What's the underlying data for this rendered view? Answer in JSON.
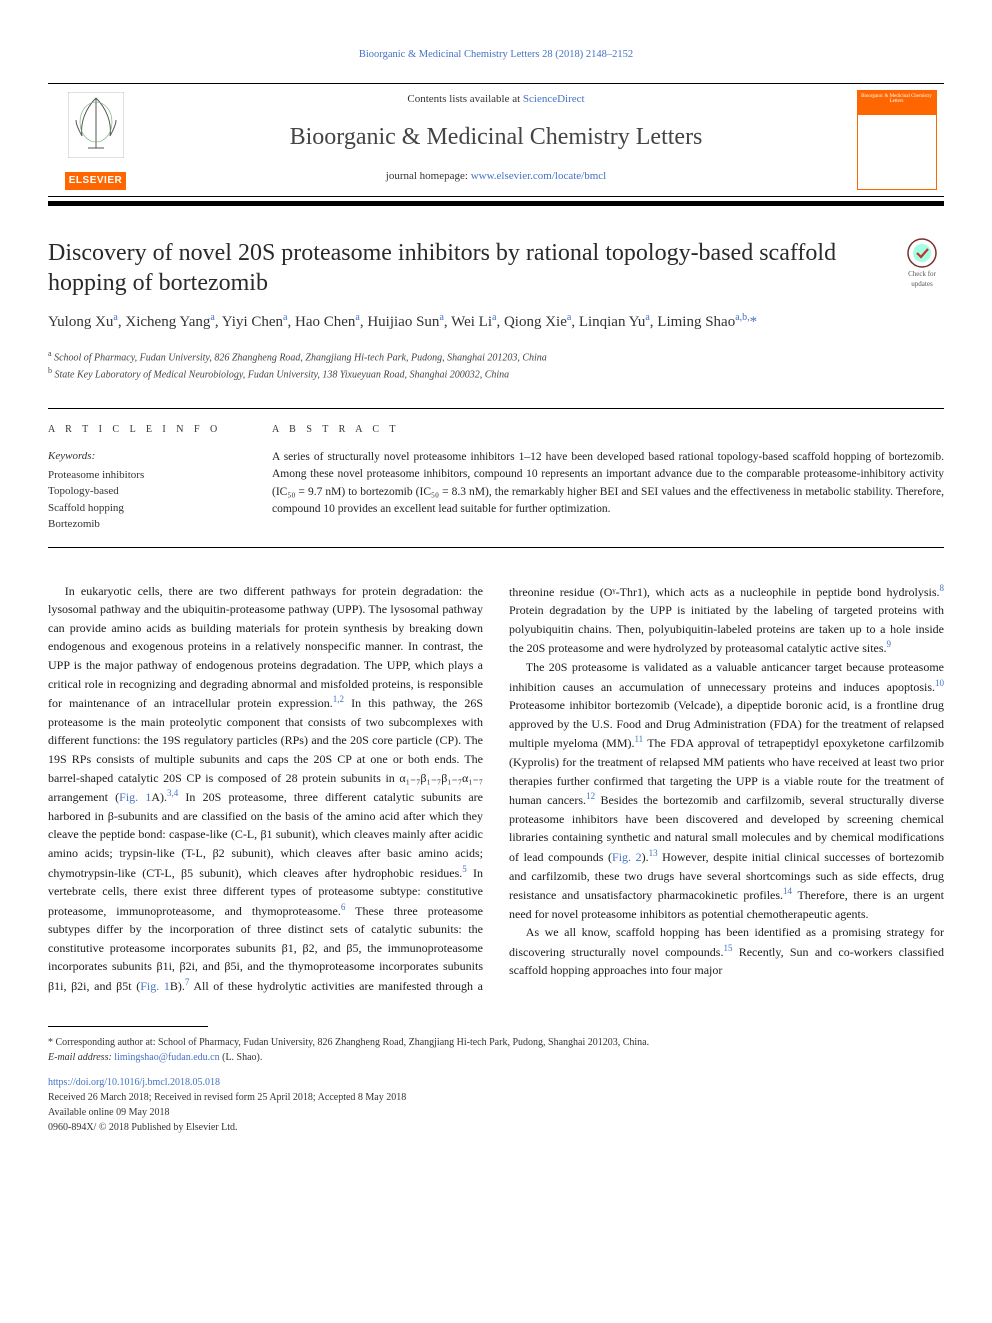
{
  "running_header": {
    "text_prefix": "Bioorganic & Medicinal Chemistry Letters 28 (2018) 2148–2152",
    "link_label": ""
  },
  "masthead": {
    "contents_prefix": "Contents lists available at ",
    "contents_link": "ScienceDirect",
    "journal_title": "Bioorganic & Medicinal Chemistry Letters",
    "homepage_prefix": "journal homepage: ",
    "homepage_link": "www.elsevier.com/locate/bmcl",
    "elsevier_wordmark": "ELSEVIER",
    "cover_title": "Bioorganic & Medicinal Chemistry Letters"
  },
  "check_updates_label": "Check for updates",
  "article_title": "Discovery of novel 20S proteasome inhibitors by rational topology-based scaffold hopping of bortezomib",
  "authors_html": "Yulong Xu<sup>a</sup>, Xicheng Yang<sup>a</sup>, Yiyi Chen<sup>a</sup>, Hao Chen<sup>a</sup>, Huijiao Sun<sup>a</sup>, Wei Li<sup>a</sup>, Qiong Xie<sup>a</sup>, Linqian Yu<sup>a</sup>, Liming Shao<sup>a,b,</sup><span class=\"corr\">*</span>",
  "affiliations": [
    "a School of Pharmacy, Fudan University, 826 Zhangheng Road, Zhangjiang Hi-tech Park, Pudong, Shanghai 201203, China",
    "b State Key Laboratory of Medical Neurobiology, Fudan University, 138 Yixueyuan Road, Shanghai 200032, China"
  ],
  "section_heads": {
    "article_info": "A R T I C L E  I N F O",
    "abstract": "A B S T R A C T"
  },
  "keywords_head": "Keywords:",
  "keywords": [
    "Proteasome inhibitors",
    "Topology-based",
    "Scaffold hopping",
    "Bortezomib"
  ],
  "abstract": "A series of structurally novel proteasome inhibitors 1–12 have been developed based rational topology-based scaffold hopping of bortezomib. Among these novel proteasome inhibitors, compound 10 represents an important advance due to the comparable proteasome-inhibitory activity (IC₅₀ = 9.7 nM) to bortezomib (IC₅₀ = 8.3 nM), the remarkably higher BEI and SEI values and the effectiveness in metabolic stability. Therefore, compound 10 provides an excellent lead suitable for further optimization.",
  "body": {
    "p1": "In eukaryotic cells, there are two different pathways for protein degradation: the lysosomal pathway and the ubiquitin-proteasome pathway (UPP). The lysosomal pathway can provide amino acids as building materials for protein synthesis by breaking down endogenous and exogenous proteins in a relatively nonspecific manner. In contrast, the UPP is the major pathway of endogenous proteins degradation. The UPP, which plays a critical role in recognizing and degrading abnormal and misfolded proteins, is responsible for maintenance of an intracellular protein expression.",
    "r1": "1,2",
    "p1b": " In this pathway, the 26S proteasome is the main proteolytic component that consists of two subcomplexes with different functions: the 19S regulatory particles (RPs) and the 20S core particle (CP). The 19S RPs consists of multiple subunits and caps the 20S CP at one or both ends. The barrel-shaped catalytic 20S CP is composed of 28 protein subunits in α₁₋₇β₁₋₇β₁₋₇α₁₋₇ arrangement (",
    "fig1a": "Fig. 1",
    "p1c": "A).",
    "r2": "3,4",
    "p1d": " In 20S proteasome, three different catalytic subunits are harbored in β-subunits and are classified on the basis of the amino acid after which they cleave the peptide bond: caspase-like (C-L, β1 subunit), which cleaves mainly after acidic amino acids; trypsin-like (T-L, β2 subunit), which cleaves after basic amino acids; chymotrypsin-like (CT-L, β5 subunit), which cleaves after hydrophobic residues.",
    "r3": "5",
    "p1e": " In vertebrate cells, there exist three different types of proteasome subtype: constitutive proteasome, immunoproteasome, and thymoproteasome.",
    "r4": "6",
    "p1f": " These three proteasome subtypes differ by the incorporation of three distinct sets of catalytic subunits: the constitutive proteasome incorporates subunits β1, β2, and β5, the immunoproteasome incorporates subunits β1i, β2i, and β5i, and the thymoproteasome incorporates subunits β1i, β2i, and β5t (",
    "fig1b": "Fig. 1",
    "p1g": "B).",
    "r5": "7",
    "p1h": " All of these hydrolytic",
    "p2a": "activities are manifested through a threonine residue (Oᵞ-Thr1), which acts as a nucleophile in peptide bond hydrolysis.",
    "r6": "8",
    "p2b": " Protein degradation by the UPP is initiated by the labeling of targeted proteins with polyubiquitin chains. Then, polyubiquitin-labeled proteins are taken up to a hole inside the 20S proteasome and were hydrolyzed by proteasomal catalytic active sites.",
    "r7": "9",
    "p3a": "The 20S proteasome is validated as a valuable anticancer target because proteasome inhibition causes an accumulation of unnecessary proteins and induces apoptosis.",
    "r8": "10",
    "p3b": " Proteasome inhibitor bortezomib (Velcade), a dipeptide boronic acid, is a frontline drug approved by the U.S. Food and Drug Administration (FDA) for the treatment of relapsed multiple myeloma (MM).",
    "r9": "11",
    "p3c": " The FDA approval of tetrapeptidyl epoxyketone carfilzomib (Kyprolis) for the treatment of relapsed MM patients who have received at least two prior therapies further confirmed that targeting the UPP is a viable route for the treatment of human cancers.",
    "r10": "12",
    "p3d": " Besides the bortezomib and carfilzomib, several structurally diverse proteasome inhibitors have been discovered and developed by screening chemical libraries containing synthetic and natural small molecules and by chemical modifications of lead compounds (",
    "fig2": "Fig. 2",
    "p3e": ").",
    "r11": "13",
    "p3f": " However, despite initial clinical successes of bortezomib and carfilzomib, these two drugs have several shortcomings such as side effects, drug resistance and unsatisfactory pharmacokinetic profiles.",
    "r12": "14",
    "p3g": " Therefore, there is an urgent need for novel proteasome inhibitors as potential chemotherapeutic agents.",
    "p4a": "As we all know, scaffold hopping has been identified as a promising strategy for discovering structurally novel compounds.",
    "r13": "15",
    "p4b": " Recently, Sun and co-workers classified scaffold hopping approaches into four major"
  },
  "footer": {
    "corr_note": "* Corresponding author at: School of Pharmacy, Fudan University, 826 Zhangheng Road, Zhangjiang Hi-tech Park, Pudong, Shanghai 201203, China.",
    "email_label": "E-mail address: ",
    "email": "limingshao@fudan.edu.cn",
    "email_suffix": " (L. Shao).",
    "doi": "https://doi.org/10.1016/j.bmcl.2018.05.018",
    "received": "Received 26 March 2018; Received in revised form 25 April 2018; Accepted 8 May 2018",
    "available": "Available online 09 May 2018",
    "copyright": "0960-894X/ © 2018 Published by Elsevier Ltd."
  },
  "colors": {
    "link": "#4472c4",
    "accent": "#ff6600",
    "text": "#1a1a1a",
    "rule": "#000000"
  }
}
